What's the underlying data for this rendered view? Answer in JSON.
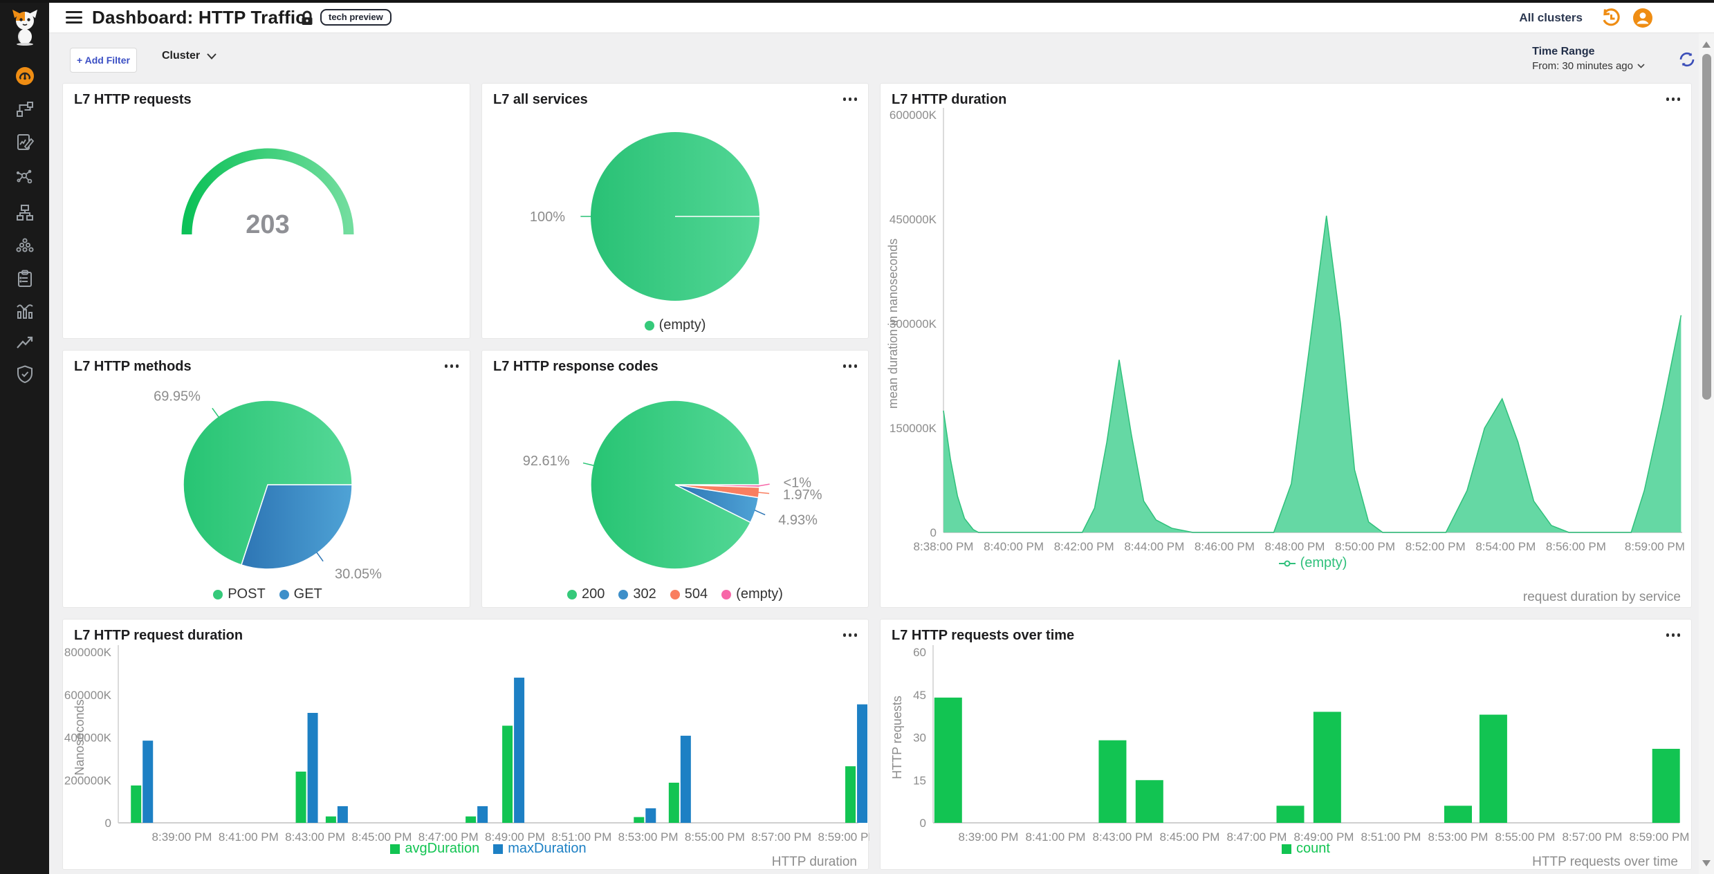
{
  "topbar": {
    "title": "Dashboard: HTTP Traffic",
    "badge": "tech preview",
    "all_clusters": "All clusters"
  },
  "filter_bar": {
    "add_filter": "+ Add Filter",
    "cluster": "Cluster"
  },
  "time_range": {
    "label": "Time Range",
    "value": "From: 30 minutes ago"
  },
  "sidebar_icons": [
    "calico-cat-logo",
    "dashboard-gauge",
    "topology",
    "policies",
    "service-graph",
    "network-tree",
    "endpoints-cluster",
    "compliance-clipboard",
    "metrics-bars",
    "trend-arrow",
    "threat-shield"
  ],
  "chart_data": [
    {
      "id": "gauge-requests",
      "type": "gauge",
      "title": "L7 HTTP requests",
      "value": "203",
      "colors": [
        "#0cc158",
        "#72dd9e"
      ],
      "text_color": "#8f9095"
    },
    {
      "id": "pie-services",
      "type": "pie",
      "title": "L7 all services",
      "slices": [
        {
          "label": "(empty)",
          "pct": 100,
          "pct_label": "100%",
          "color": [
            "#29c175",
            "#53d796"
          ]
        }
      ],
      "legend": [
        {
          "label": "(empty)",
          "color": "#35c97a"
        }
      ]
    },
    {
      "id": "area-duration",
      "type": "area",
      "title": "L7 HTTP duration",
      "ylabel": "mean duration in nanoseconds",
      "footer": "request duration by service",
      "ymax": 600000,
      "yticks": [
        {
          "v": 0,
          "label": "0"
        },
        {
          "v": 150000,
          "label": "150000K"
        },
        {
          "v": 300000,
          "label": "300000K"
        },
        {
          "v": 450000,
          "label": "450000K"
        },
        {
          "v": 600000,
          "label": "600000K"
        }
      ],
      "xticks": [
        "8:38:00 PM",
        "8:40:00 PM",
        "8:42:00 PM",
        "8:44:00 PM",
        "8:46:00 PM",
        "8:48:00 PM",
        "8:50:00 PM",
        "8:52:00 PM",
        "8:54:00 PM",
        "8:56:00 PM",
        "8:59:00 PM"
      ],
      "series": {
        "name": "(empty)",
        "stroke": "#2fc07b",
        "fill": "#65d8a4"
      },
      "x_unit": "minutes after 8:00 PM",
      "y_unit": "K nanoseconds",
      "points": [
        [
          38,
          175000
        ],
        [
          38.2,
          105000
        ],
        [
          38.4,
          52000
        ],
        [
          38.6,
          20000
        ],
        [
          38.85,
          4000
        ],
        [
          39,
          0
        ],
        [
          41.95,
          0
        ],
        [
          42.3,
          35000
        ],
        [
          42.65,
          130000
        ],
        [
          43,
          248000
        ],
        [
          43.35,
          140000
        ],
        [
          43.7,
          45000
        ],
        [
          44.05,
          18000
        ],
        [
          44.5,
          6000
        ],
        [
          45.1,
          0
        ],
        [
          47.4,
          0
        ],
        [
          47.9,
          70000
        ],
        [
          48.4,
          260000
        ],
        [
          48.9,
          455000
        ],
        [
          49.3,
          300000
        ],
        [
          49.7,
          90000
        ],
        [
          50.1,
          15000
        ],
        [
          50.5,
          0
        ],
        [
          52.3,
          0
        ],
        [
          52.9,
          60000
        ],
        [
          53.4,
          150000
        ],
        [
          53.9,
          192000
        ],
        [
          54.35,
          130000
        ],
        [
          54.8,
          45000
        ],
        [
          55.3,
          10000
        ],
        [
          55.8,
          0
        ],
        [
          58.1,
          0
        ],
        [
          58.6,
          60000
        ],
        [
          59.3,
          180000
        ],
        [
          60,
          312000
        ]
      ]
    },
    {
      "id": "pie-methods",
      "type": "pie",
      "title": "L7 HTTP methods",
      "slices": [
        {
          "label": "GET",
          "pct": 30.05,
          "pct_label": "30.05%",
          "color": [
            "#2d75b4",
            "#4fa3d6"
          ]
        },
        {
          "label": "POST",
          "pct": 69.95,
          "pct_label": "69.95%",
          "color": [
            "#27c473",
            "#55d897"
          ]
        }
      ],
      "legend": [
        {
          "label": "POST",
          "color": "#35c97a"
        },
        {
          "label": "GET",
          "color": "#3d8fc9"
        }
      ]
    },
    {
      "id": "pie-codes",
      "type": "pie",
      "title": "L7 HTTP response codes",
      "slices": [
        {
          "label": "(empty)",
          "pct": 0.49,
          "pct_label": "<1%",
          "color": [
            "#f767a8",
            "#f767a8"
          ]
        },
        {
          "label": "504",
          "pct": 1.97,
          "pct_label": "1.97%",
          "color": [
            "#f97e60",
            "#f97e60"
          ]
        },
        {
          "label": "302",
          "pct": 4.93,
          "pct_label": "4.93%",
          "color": [
            "#2d75b4",
            "#4fa3d6"
          ]
        },
        {
          "label": "200",
          "pct": 92.61,
          "pct_label": "92.61%",
          "color": [
            "#27c473",
            "#55d897"
          ]
        }
      ],
      "legend": [
        {
          "label": "200",
          "color": "#35c97a"
        },
        {
          "label": "302",
          "color": "#3d8fc9"
        },
        {
          "label": "504",
          "color": "#f97e60"
        },
        {
          "label": "(empty)",
          "color": "#f767a8"
        }
      ]
    },
    {
      "id": "bars-duration",
      "type": "bars",
      "title": "L7 HTTP request duration",
      "ylabel": "Nanoseconds",
      "footer": "HTTP duration",
      "ymax": 800000,
      "yticks": [
        {
          "v": 0,
          "label": "0"
        },
        {
          "v": 200000,
          "label": "200000K"
        },
        {
          "v": 400000,
          "label": "400000K"
        },
        {
          "v": 600000,
          "label": "600000K"
        },
        {
          "v": 800000,
          "label": "800000K"
        }
      ],
      "xticks": [
        "8:39:00 PM",
        "8:41:00 PM",
        "8:43:00 PM",
        "8:45:00 PM",
        "8:47:00 PM",
        "8:49:00 PM",
        "8:51:00 PM",
        "8:53:00 PM",
        "8:55:00 PM",
        "8:57:00 PM",
        "8:59:00 PM"
      ],
      "series": [
        {
          "name": "avgDuration",
          "color": "#12c452"
        },
        {
          "name": "maxDuration",
          "color": "#1d80c4"
        }
      ],
      "x_unit": "minutes after 8:00 PM",
      "y_unit": "K nanoseconds",
      "items": [
        {
          "t": 37.8,
          "values": [
            175000,
            385000
          ]
        },
        {
          "t": 42.75,
          "values": [
            240000,
            515000
          ]
        },
        {
          "t": 43.65,
          "values": [
            30000,
            78000
          ]
        },
        {
          "t": 47.85,
          "values": [
            30000,
            78000
          ]
        },
        {
          "t": 48.95,
          "values": [
            455000,
            680000
          ]
        },
        {
          "t": 52.9,
          "values": [
            27000,
            68000
          ]
        },
        {
          "t": 53.95,
          "values": [
            188000,
            408000
          ]
        },
        {
          "t": 59.25,
          "values": [
            265000,
            555000
          ]
        }
      ]
    },
    {
      "id": "bars-requests",
      "type": "bars",
      "title": "L7 HTTP requests over time",
      "ylabel": "HTTP requests",
      "footer": "HTTP requests over time",
      "ymax": 60,
      "yticks": [
        {
          "v": 0,
          "label": "0"
        },
        {
          "v": 15,
          "label": "15"
        },
        {
          "v": 30,
          "label": "30"
        },
        {
          "v": 45,
          "label": "45"
        },
        {
          "v": 60,
          "label": "60"
        }
      ],
      "xticks": [
        "8:39:00 PM",
        "8:41:00 PM",
        "8:43:00 PM",
        "8:45:00 PM",
        "8:47:00 PM",
        "8:49:00 PM",
        "8:51:00 PM",
        "8:53:00 PM",
        "8:55:00 PM",
        "8:57:00 PM",
        "8:59:00 PM"
      ],
      "series": [
        {
          "name": "count",
          "color": "#12c452"
        }
      ],
      "x_unit": "minutes after 8:00 PM",
      "y_unit": "requests",
      "items": [
        {
          "t": 37.8,
          "values": [
            44
          ]
        },
        {
          "t": 42.7,
          "values": [
            29
          ]
        },
        {
          "t": 43.8,
          "values": [
            15
          ]
        },
        {
          "t": 48.0,
          "values": [
            6
          ]
        },
        {
          "t": 49.1,
          "values": [
            39
          ]
        },
        {
          "t": 53.0,
          "values": [
            6
          ]
        },
        {
          "t": 54.05,
          "values": [
            38
          ]
        },
        {
          "t": 59.2,
          "values": [
            26
          ]
        }
      ]
    }
  ]
}
